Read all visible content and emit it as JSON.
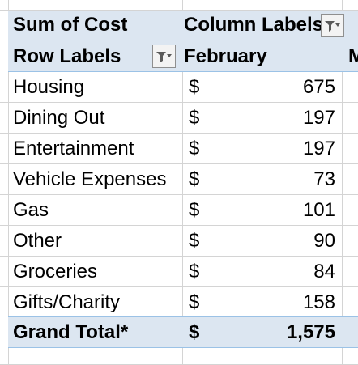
{
  "pivot": {
    "value_field": "Sum of Cost",
    "column_labels": "Column Labels",
    "row_labels": "Row Labels",
    "column_header": "February",
    "next_column_partial": "M",
    "currency": "$",
    "rows": [
      {
        "label": "Housing",
        "currency": "$",
        "value": "675"
      },
      {
        "label": "Dining Out",
        "currency": "$",
        "value": "197"
      },
      {
        "label": "Entertainment",
        "currency": "$",
        "value": "197"
      },
      {
        "label": "Vehicle Expenses",
        "currency": "$",
        "value": "73"
      },
      {
        "label": "Gas",
        "currency": "$",
        "value": "101"
      },
      {
        "label": "Other",
        "currency": "$",
        "value": "90"
      },
      {
        "label": "Groceries",
        "currency": "$",
        "value": "84"
      },
      {
        "label": "Gifts/Charity",
        "currency": "$",
        "value": "158"
      }
    ],
    "grand_total": {
      "label": "Grand Total*",
      "currency": "$",
      "value": "1,575"
    }
  },
  "colors": {
    "header_fill": "#dce6f1",
    "header_border": "#9bc2e6",
    "gridline": "#d4d4d4"
  },
  "icons": {
    "column_filter": "filter-funnel-icon",
    "row_filter": "filter-funnel-icon"
  }
}
